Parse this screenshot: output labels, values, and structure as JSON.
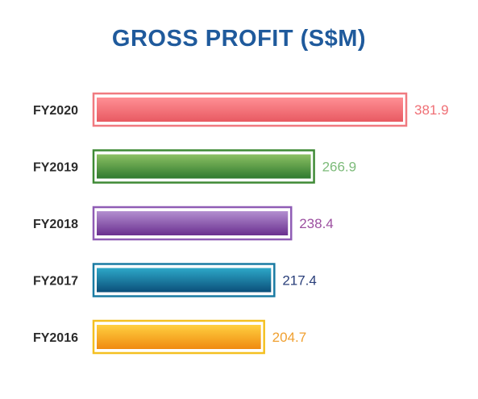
{
  "chart_data": {
    "type": "bar",
    "orientation": "horizontal",
    "title": "GROSS PROFIT (S$M)",
    "categories": [
      "FY2020",
      "FY2019",
      "FY2018",
      "FY2017",
      "FY2016"
    ],
    "values": [
      381.9,
      266.9,
      238.4,
      217.4,
      204.7
    ],
    "value_labels": [
      "381.9",
      "266.9",
      "238.4",
      "217.4",
      "204.7"
    ],
    "xlabel": "",
    "ylabel": "",
    "grid": false,
    "legend": "none",
    "colors": [
      {
        "top": "#ff8f94",
        "bottom": "#e85a62",
        "frame": "#f07a80",
        "text": "#ef6f75"
      },
      {
        "top": "#8cc063",
        "bottom": "#2f7a2f",
        "frame": "#3f8a35",
        "text": "#7dbb7a"
      },
      {
        "top": "#b38fd0",
        "bottom": "#6a2f8f",
        "frame": "#8f5cb5",
        "text": "#9c4fa0"
      },
      {
        "top": "#2da8c8",
        "bottom": "#0b4f7a",
        "frame": "#1a7ba3",
        "text": "#2a3f7a"
      },
      {
        "top": "#ffd040",
        "bottom": "#f08a10",
        "frame": "#f4c020",
        "text": "#f0a030"
      }
    ]
  }
}
